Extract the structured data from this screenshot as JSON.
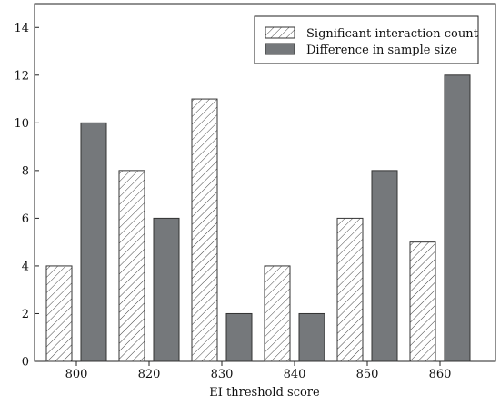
{
  "chart_data": {
    "type": "bar",
    "categories": [
      "800",
      "820",
      "830",
      "840",
      "850",
      "860"
    ],
    "series": [
      {
        "name": "Significant interaction count",
        "values": [
          4,
          8,
          11,
          4,
          6,
          5
        ],
        "fill": "hatched",
        "color": "#ffffff"
      },
      {
        "name": "Difference in sample size",
        "values": [
          10,
          6,
          2,
          2,
          8,
          12
        ],
        "fill": "solid",
        "color": "#75787b"
      }
    ],
    "title": "",
    "xlabel": "EI threshold score",
    "ylabel": "",
    "ylim": [
      0,
      15
    ],
    "yticks": [
      "0",
      "2",
      "4",
      "6",
      "8",
      "10",
      "12",
      "14"
    ],
    "legend_position": "top-right",
    "grid": false
  }
}
